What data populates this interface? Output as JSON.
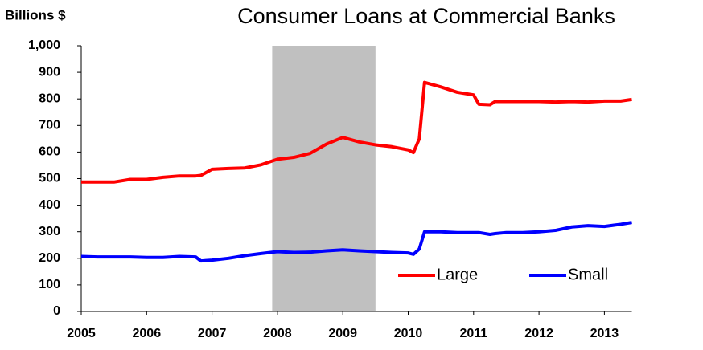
{
  "chart_data": {
    "type": "line",
    "title": "Consumer Loans at Commercial Banks",
    "y_label": "Billions $",
    "x": [
      2005.0,
      2005.25,
      2005.5,
      2005.75,
      2006.0,
      2006.25,
      2006.5,
      2006.75,
      2006.83,
      2007.0,
      2007.25,
      2007.5,
      2007.75,
      2008.0,
      2008.25,
      2008.5,
      2008.75,
      2009.0,
      2009.25,
      2009.5,
      2009.75,
      2010.0,
      2010.08,
      2010.17,
      2010.25,
      2010.5,
      2010.75,
      2011.0,
      2011.08,
      2011.25,
      2011.33,
      2011.5,
      2011.75,
      2012.0,
      2012.25,
      2012.5,
      2012.75,
      2013.0,
      2013.25,
      2013.42
    ],
    "series": [
      {
        "name": "Large",
        "color": "#ff0000",
        "values": [
          487,
          487,
          487,
          497,
          497,
          505,
          510,
          510,
          512,
          535,
          538,
          540,
          552,
          573,
          580,
          595,
          630,
          655,
          638,
          627,
          620,
          608,
          598,
          650,
          862,
          845,
          825,
          815,
          780,
          778,
          790,
          790,
          790,
          790,
          788,
          790,
          788,
          792,
          792,
          798
        ]
      },
      {
        "name": "Small",
        "color": "#0000ff",
        "values": [
          207,
          205,
          205,
          205,
          203,
          203,
          207,
          205,
          190,
          193,
          200,
          210,
          218,
          225,
          222,
          223,
          228,
          232,
          228,
          225,
          222,
          220,
          215,
          235,
          300,
          300,
          297,
          297,
          297,
          290,
          293,
          297,
          297,
          300,
          305,
          318,
          323,
          320,
          328,
          335
        ]
      }
    ],
    "shaded_range": [
      2007.92,
      2009.5
    ],
    "shade_color": "#c0c0c0",
    "xlim": [
      2005,
      2013.42
    ],
    "xticks": [
      2005,
      2006,
      2007,
      2008,
      2009,
      2010,
      2011,
      2012,
      2013
    ],
    "ylim": [
      0,
      1000
    ],
    "yticks": [
      0,
      100,
      200,
      300,
      400,
      500,
      600,
      700,
      800,
      900,
      {
        "value": 1000,
        "label": "1,000"
      }
    ],
    "legend": "lower right",
    "grid": false
  }
}
